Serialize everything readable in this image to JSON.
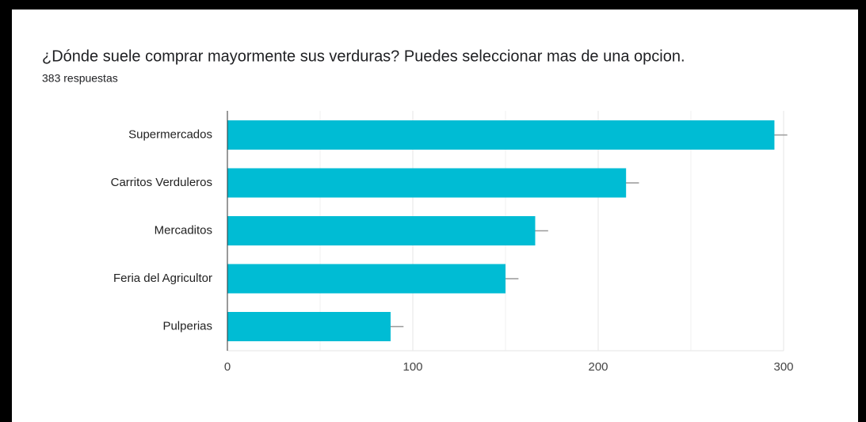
{
  "chart_data": {
    "type": "bar",
    "orientation": "horizontal",
    "title": "¿Dónde suele comprar mayormente sus verduras? Puedes seleccionar mas de una opcion.",
    "subtitle": "383 respuestas",
    "categories": [
      "Supermercados",
      "Carritos Verduleros",
      "Mercaditos",
      "Feria del Agricultor",
      "Pulperias"
    ],
    "values": [
      295,
      215,
      166,
      150,
      88
    ],
    "errors": [
      7,
      7,
      7,
      7,
      7
    ],
    "color": "#00bcd4",
    "xlim": [
      0,
      300
    ],
    "xticks": [
      0,
      100,
      200,
      300
    ],
    "minor_xticks": [
      50,
      150,
      250
    ],
    "grid": true
  }
}
